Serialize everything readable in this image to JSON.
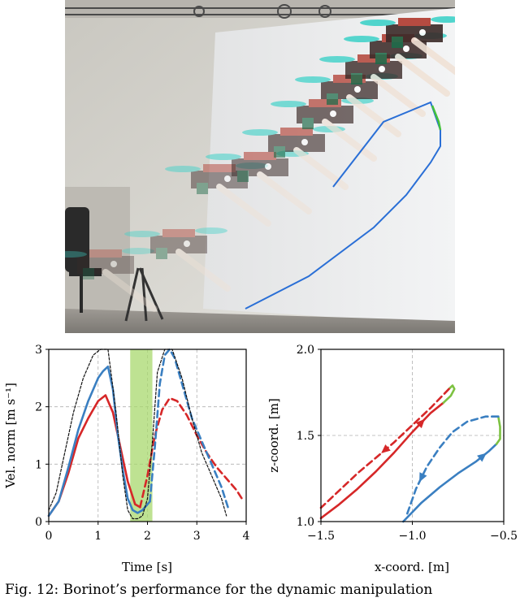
{
  "caption": "Fig. 12: Borinot’s performance for the dynamic manipulation",
  "chart_data": [
    {
      "type": "line",
      "xlabel": "Time [s]",
      "ylabel": "Vel. norm [m s⁻¹]",
      "xlim": [
        0,
        4
      ],
      "ylim": [
        0,
        3
      ],
      "xticks": [
        "0",
        "1",
        "2",
        "3",
        "4"
      ],
      "yticks": [
        "0",
        "1",
        "2",
        "3"
      ],
      "grid": true,
      "highlight_band": {
        "x": [
          1.65,
          2.1
        ],
        "color": "#a8d86e"
      },
      "series": [
        {
          "color": "#d62728",
          "style": "solid",
          "x": [
            0,
            0.2,
            0.4,
            0.6,
            0.8,
            1.0,
            1.15,
            1.3,
            1.45,
            1.6,
            1.75,
            1.85
          ],
          "y": [
            0.1,
            0.35,
            0.85,
            1.45,
            1.8,
            2.1,
            2.2,
            1.9,
            1.3,
            0.7,
            0.3,
            0.25
          ]
        },
        {
          "color": "#d62728",
          "style": "dashed",
          "x": [
            1.85,
            2.0,
            2.15,
            2.3,
            2.45,
            2.6,
            2.8,
            3.0,
            3.2,
            3.4,
            3.6,
            3.8,
            3.95
          ],
          "y": [
            0.25,
            0.8,
            1.5,
            1.95,
            2.15,
            2.1,
            1.85,
            1.5,
            1.2,
            0.95,
            0.75,
            0.55,
            0.35
          ]
        },
        {
          "color": "#3a7fc1",
          "style": "solid",
          "x": [
            0,
            0.2,
            0.4,
            0.6,
            0.8,
            1.0,
            1.1,
            1.2,
            1.3,
            1.4,
            1.5,
            1.6,
            1.7,
            1.8,
            1.9,
            2.0,
            2.05
          ],
          "y": [
            0.1,
            0.35,
            0.95,
            1.6,
            2.1,
            2.5,
            2.62,
            2.7,
            2.3,
            1.5,
            0.9,
            0.4,
            0.2,
            0.15,
            0.2,
            0.3,
            0.35
          ]
        },
        {
          "color": "#3a7fc1",
          "style": "dashed",
          "x": [
            2.05,
            2.15,
            2.25,
            2.35,
            2.45,
            2.55,
            2.7,
            2.9,
            3.1,
            3.3,
            3.5,
            3.65
          ],
          "y": [
            0.35,
            1.3,
            2.4,
            2.9,
            3.0,
            2.85,
            2.4,
            1.8,
            1.4,
            1.0,
            0.6,
            0.2
          ]
        },
        {
          "color": "#111111",
          "style": "dotted",
          "x": [
            0,
            0.15,
            0.3,
            0.5,
            0.7,
            0.9,
            1.05,
            1.2,
            1.35,
            1.5,
            1.6,
            1.7,
            1.8,
            1.9,
            2.0,
            2.1,
            2.2,
            2.35,
            2.5,
            2.7,
            2.9,
            3.1,
            3.3,
            3.5,
            3.6
          ],
          "y": [
            0.2,
            0.5,
            1.1,
            1.9,
            2.5,
            2.9,
            3.0,
            3.0,
            2.0,
            0.8,
            0.2,
            0.05,
            0.05,
            0.1,
            0.4,
            1.4,
            2.6,
            3.0,
            3.0,
            2.5,
            1.8,
            1.2,
            0.8,
            0.4,
            0.1
          ]
        }
      ]
    },
    {
      "type": "line",
      "xlabel": "x-coord. [m]",
      "ylabel": "z-coord. [m]",
      "xlim": [
        -1.5,
        -0.5
      ],
      "ylim": [
        1.0,
        2.0
      ],
      "xticks": [
        "−1.5",
        "−1.0",
        "−0.5"
      ],
      "yticks": [
        "1.0",
        "1.5",
        "2.0"
      ],
      "grid": true,
      "series": [
        {
          "color": "#d62728",
          "style": "solid",
          "x": [
            -1.5,
            -1.4,
            -1.3,
            -1.2,
            -1.1,
            -1.0,
            -0.9,
            -0.83
          ],
          "y": [
            1.02,
            1.1,
            1.19,
            1.29,
            1.4,
            1.52,
            1.63,
            1.69
          ]
        },
        {
          "color": "#7dc242",
          "style": "solid",
          "x": [
            -0.83,
            -0.79,
            -0.77,
            -0.78,
            -0.8
          ],
          "y": [
            1.69,
            1.73,
            1.77,
            1.79,
            1.77
          ]
        },
        {
          "color": "#d62728",
          "style": "dashed",
          "x": [
            -0.8,
            -0.9,
            -1.0,
            -1.1,
            -1.2,
            -1.3,
            -1.4,
            -1.5
          ],
          "y": [
            1.77,
            1.66,
            1.56,
            1.46,
            1.37,
            1.28,
            1.18,
            1.08
          ]
        },
        {
          "color": "#3a7fc1",
          "style": "solid",
          "x": [
            -1.05,
            -0.95,
            -0.85,
            -0.75,
            -0.65,
            -0.58,
            -0.54
          ],
          "y": [
            1.0,
            1.11,
            1.2,
            1.28,
            1.35,
            1.41,
            1.45
          ]
        },
        {
          "color": "#7dc242",
          "style": "solid",
          "x": [
            -0.54,
            -0.52,
            -0.52,
            -0.53
          ],
          "y": [
            1.45,
            1.48,
            1.55,
            1.61
          ]
        },
        {
          "color": "#3a7fc1",
          "style": "dashed",
          "x": [
            -0.53,
            -0.6,
            -0.7,
            -0.78,
            -0.85,
            -0.92,
            -0.98,
            -1.03
          ],
          "y": [
            1.61,
            1.61,
            1.58,
            1.52,
            1.43,
            1.32,
            1.19,
            1.04
          ]
        }
      ]
    }
  ]
}
